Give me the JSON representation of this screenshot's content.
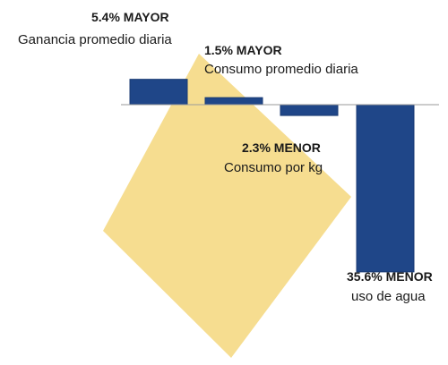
{
  "chart_data": {
    "type": "bar",
    "categories": [
      "Ganancia promedio diaria",
      "Consumo promedio diaria",
      "Consumo por kg",
      "uso de agua"
    ],
    "values": [
      5.4,
      1.5,
      -2.3,
      -35.6
    ],
    "value_labels": [
      "5.4% MAYOR",
      "1.5% MAYOR",
      "2.3% MENOR",
      "35.6% MENOR"
    ],
    "title": "",
    "xlabel": "",
    "ylabel": "",
    "ylim": [
      -38,
      6
    ],
    "grid": false,
    "legend": "none"
  },
  "colors": {
    "bar": "#1f4688",
    "bar_edge": "#183a73",
    "background_shape": "#f6dd90",
    "baseline": "#9a9a9a",
    "text": "#1a1a1a"
  }
}
